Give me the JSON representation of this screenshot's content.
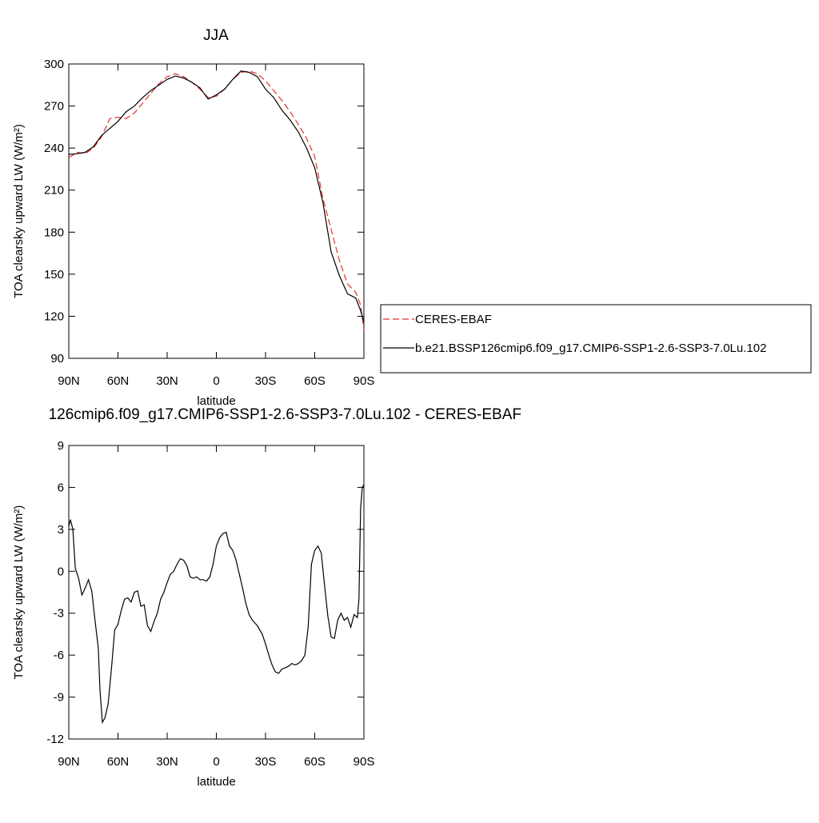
{
  "chart_data": [
    {
      "type": "line",
      "title": "JJA",
      "xlabel": "latitude",
      "ylabel": "TOA clearsky upward LW (W/m²)",
      "xlim": [
        90,
        -90
      ],
      "xticks": [
        {
          "value": 90,
          "label": "90N"
        },
        {
          "value": 60,
          "label": "60N"
        },
        {
          "value": 30,
          "label": "30N"
        },
        0,
        {
          "value": -30,
          "label": "30S"
        },
        {
          "value": -60,
          "label": "60S"
        },
        {
          "value": -90,
          "label": "90S"
        }
      ],
      "ylim": [
        90,
        300
      ],
      "yticks": [
        90,
        120,
        150,
        180,
        210,
        240,
        270,
        300
      ],
      "legend": "right",
      "x": [
        90,
        85,
        80,
        75,
        70,
        65,
        60,
        55,
        50,
        45,
        40,
        35,
        30,
        25,
        20,
        15,
        10,
        5,
        0,
        -5,
        -10,
        -15,
        -20,
        -25,
        -30,
        -35,
        -40,
        -45,
        -50,
        -55,
        -60,
        -65,
        -70,
        -75,
        -80,
        -85,
        -88,
        -90
      ],
      "series": [
        {
          "name": "CERES-EBAF",
          "color": "#e8302a",
          "dash": true,
          "values": [
            233,
            237,
            236,
            240,
            248,
            261,
            262,
            261,
            265,
            272,
            279,
            286,
            291,
            293,
            291,
            287,
            282,
            276,
            277,
            282,
            289,
            294,
            295,
            293,
            288,
            281,
            274,
            266,
            257,
            247,
            234,
            204,
            182,
            160,
            143,
            137,
            128,
            110
          ]
        },
        {
          "name": "b.e21.BSSP126cmip6.f09_g17.CMIP6-SSP1-2.6-SSP3-7.0Lu.102",
          "color": "#000000",
          "dash": false,
          "values": [
            235.5,
            236,
            237,
            241,
            249,
            254,
            259,
            266,
            270,
            276,
            281,
            285,
            289,
            291.4,
            290,
            287,
            283,
            275,
            278,
            282,
            289,
            295,
            294,
            291,
            282,
            276,
            267,
            260,
            251.5,
            240,
            226,
            201,
            166,
            149,
            136,
            133,
            124,
            116
          ]
        }
      ]
    },
    {
      "type": "line",
      "title": "126cmip6.f09_g17.CMIP6-SSP1-2.6-SSP3-7.0Lu.102 - CERES-EBAF",
      "xlabel": "latitude",
      "ylabel": "TOA clearsky upward LW (W/m²)",
      "xlim": [
        90,
        -90
      ],
      "xticks": [
        {
          "value": 90,
          "label": "90N"
        },
        {
          "value": 60,
          "label": "60N"
        },
        {
          "value": 30,
          "label": "30N"
        },
        0,
        {
          "value": -30,
          "label": "30S"
        },
        {
          "value": -60,
          "label": "60S"
        },
        {
          "value": -90,
          "label": "90S"
        }
      ],
      "ylim": [
        -12,
        9
      ],
      "yticks": [
        -12,
        -9,
        -6,
        -3,
        0,
        3,
        6,
        9
      ],
      "x": [
        90,
        89,
        87.5,
        86,
        84,
        82,
        80,
        78,
        76,
        74,
        72,
        71,
        69.5,
        68,
        66,
        64,
        62,
        60,
        58,
        56,
        54,
        52,
        50,
        48,
        46,
        44,
        42,
        40,
        38,
        36,
        34,
        32,
        30,
        28,
        26,
        24,
        22,
        20,
        18,
        16,
        14,
        12,
        10,
        8,
        6,
        4,
        2,
        0,
        -2,
        -4,
        -6,
        -8,
        -10,
        -12,
        -14,
        -16,
        -18,
        -20,
        -22,
        -25,
        -28,
        -30,
        -32,
        -34,
        -36,
        -38,
        -40,
        -42,
        -44,
        -46,
        -48,
        -50,
        -52,
        -54,
        -56,
        -58,
        -60,
        -62,
        -64,
        -66,
        -68,
        -70,
        -72,
        -74,
        -76,
        -78,
        -80,
        -82,
        -84,
        -86,
        -87,
        -88,
        -89,
        -90
      ],
      "series": [
        {
          "name": null,
          "color": "#000000",
          "dash": false,
          "values": [
            3.2,
            3.7,
            3.0,
            0.2,
            -0.5,
            -1.7,
            -1.2,
            -0.6,
            -1.4,
            -3.5,
            -5.5,
            -8.5,
            -10.8,
            -10.5,
            -9.5,
            -7,
            -4.2,
            -3.8,
            -2.8,
            -2,
            -1.9,
            -2.2,
            -1.5,
            -1.4,
            -2.5,
            -2.4,
            -3.9,
            -4.3,
            -3.6,
            -3.0,
            -2.0,
            -1.5,
            -0.8,
            -0.2,
            0.0,
            0.5,
            0.9,
            0.8,
            0.4,
            -0.4,
            -0.5,
            -0.4,
            -0.6,
            -0.6,
            -0.7,
            -0.4,
            0.5,
            1.8,
            2.4,
            2.7,
            2.8,
            1.8,
            1.5,
            0.8,
            -0.2,
            -1.2,
            -2.3,
            -3.1,
            -3.5,
            -3.9,
            -4.5,
            -5.2,
            -6.0,
            -6.7,
            -7.2,
            -7.3,
            -7.0,
            -6.9,
            -6.8,
            -6.6,
            -6.7,
            -6.6,
            -6.4,
            -6.0,
            -4.0,
            0.5,
            1.5,
            1.8,
            1.3,
            -1.0,
            -3.2,
            -4.7,
            -4.8,
            -3.5,
            -3.0,
            -3.5,
            -3.3,
            -4.0,
            -3.1,
            -3.3,
            -2.0,
            4.5,
            6.0,
            6.2
          ]
        }
      ]
    }
  ]
}
